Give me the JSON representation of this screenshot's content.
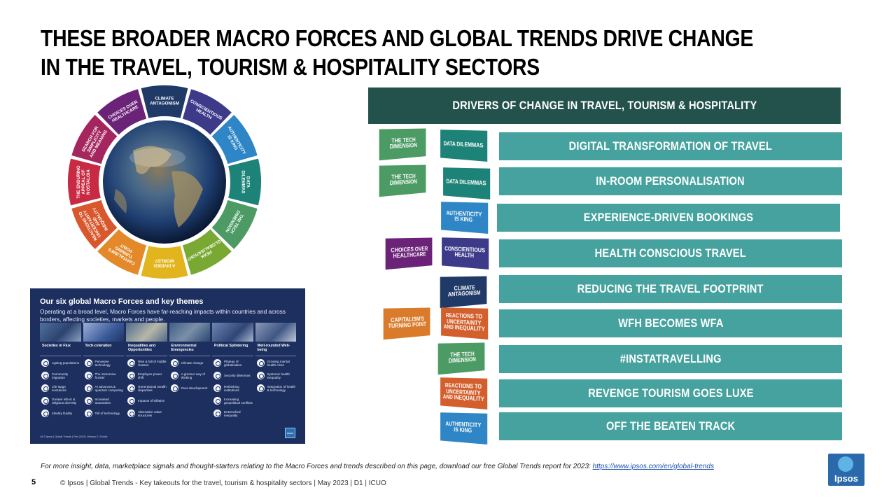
{
  "slide": {
    "title_line1": "THESE BROADER MACRO FORCES AND GLOBAL TRENDS DRIVE CHANGE",
    "title_line2": "IN THE TRAVEL, TOURISM & HOSPITALITY SECTORS"
  },
  "wheel": {
    "segments": [
      {
        "label": "CLIMATE ANTAGONISM",
        "color": "#1f3a66"
      },
      {
        "label": "CONSCIENTIOUS HEALTH",
        "color": "#3d3a8a"
      },
      {
        "label": "AUTHENTICITY IS KING",
        "color": "#2f86c6"
      },
      {
        "label": "DATA DILEMMAS",
        "color": "#1d8277"
      },
      {
        "label": "THE TECH DIMENSION",
        "color": "#4c9b64"
      },
      {
        "label": "PEAK GLOBALISATION?",
        "color": "#7aa933"
      },
      {
        "label": "A DIVIDED WORLD?",
        "color": "#e2b41d"
      },
      {
        "label": "CAPITALISM'S TURNING POINT",
        "color": "#e3892a"
      },
      {
        "label": "REACTIONS TO UNCERTAINTY AND INEQUALITY",
        "color": "#d8572c"
      },
      {
        "label": "THE ENDURING APPEAL OF NOSTALGIA",
        "color": "#c92a43"
      },
      {
        "label": "SEARCH FOR SIMPLICITY AND MEANING",
        "color": "#a5265e"
      },
      {
        "label": "CHOICES OVER HEALTHCARE",
        "color": "#6b2378"
      }
    ]
  },
  "card": {
    "title": "Our six global Macro Forces and key themes",
    "subtitle": "Operating at a broad level, Macro Forces have far-reaching impacts within countries and across borders, affecting societies, markets and people.",
    "columns": [
      {
        "name": "Societies in Flux",
        "items": [
          "Ageing populations",
          "Community migration",
          "Life stage evolutions",
          "Greater ethnic & religious diversity",
          "Identity fluidity"
        ]
      },
      {
        "name": "Tech-celeration",
        "items": [
          "Pervasive technology",
          "The immersive frontier",
          "AI advances & quantum computing",
          "Increased automation",
          "Toll of technology"
        ]
      },
      {
        "name": "Inequalities and Opportunities",
        "items": [
          "Rise & fall of middle classes",
          "Employee power shift",
          "Generational wealth disparities",
          "Impacts of inflation",
          "Alternative value structures"
        ]
      },
      {
        "name": "Environmental Emergencies",
        "items": [
          "Climate change",
          "A greener way of thinking",
          "Over-development"
        ]
      },
      {
        "name": "Political Splintering",
        "items": [
          "Plateau of globalisation",
          "Security dilemmas",
          "Rethinking institutions",
          "Increasing geopolitical conflicts",
          "Entrenched inequality"
        ]
      },
      {
        "name": "Well-rounded Well-being",
        "items": [
          "Growing mental health crisis",
          "Systemic health inequality",
          "Integration of health & technology"
        ]
      }
    ],
    "footer": "19   © Ipsos | Global Trends | Feb 2023 | Version 2 | Public",
    "logo": "Ipsos"
  },
  "drivers": {
    "header": "DRIVERS OF CHANGE IN TRAVEL, TOURISM & HOSPITALITY",
    "rows": [
      "DIGITAL TRANSFORMATION OF TRAVEL",
      "IN-ROOM PERSONALISATION",
      "EXPERIENCE-DRIVEN BOOKINGS",
      "HEALTH CONSCIOUS TRAVEL",
      "REDUCING THE TRAVEL FOOTPRINT",
      "WFH BECOMES WFA",
      "#INSTATRAVELLING",
      "REVENGE TOURISM GOES LUXE",
      "OFF THE BEATEN TRACK"
    ],
    "chips": {
      "tech": "THE TECH DIMENSION",
      "data": "DATA DILEMMAS",
      "auth": "AUTHENTICITY IS KING",
      "choice": "CHOICES OVER HEALTHCARE",
      "consc": "CONSCIENTIOUS HEALTH",
      "clim": "CLIMATE ANTAGONISM",
      "cap": "CAPITALISM'S TURNING POINT",
      "react": "REACTIONS TO UNCERTAINTY AND INEQUALITY"
    }
  },
  "footer": {
    "note": "For more insight, data, marketplace signals and thought-starters relating to the Macro Forces and trends described on this page, download our free Global Trends report for 2023: ",
    "link": "https://www.ipsos.com/en/global-trends",
    "page": "5",
    "copyright": "© Ipsos | Global Trends - Key takeouts for the travel, tourism & hospitality sectors | May 2023 | D1 | ICUO",
    "logo": "Ipsos"
  }
}
